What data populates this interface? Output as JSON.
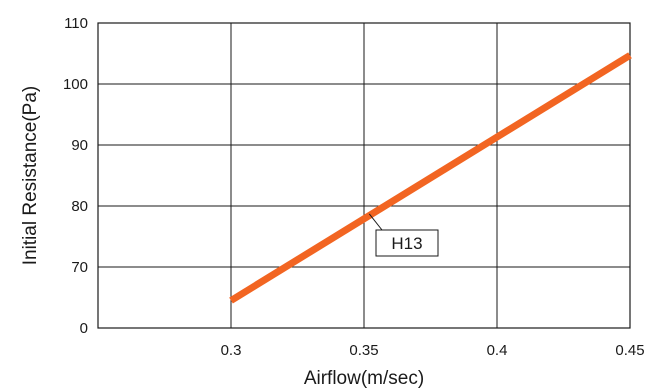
{
  "chart_data": {
    "type": "line",
    "title": "",
    "xlabel": "Airflow(m/sec)",
    "ylabel": "Initial Resistance(Pa)",
    "xlim": [
      0.25,
      0.45
    ],
    "x_ticks": [
      "0.3",
      "0.35",
      "0.4",
      "0.45"
    ],
    "x_tick_values": [
      0.3,
      0.35,
      0.4,
      0.45
    ],
    "y_ticks": [
      "0",
      "70",
      "80",
      "90",
      "100",
      "110"
    ],
    "grid": true,
    "series": [
      {
        "name": "H13",
        "color": "#f26522",
        "x": [
          0.3,
          0.45
        ],
        "y": [
          64.5,
          104.7
        ]
      }
    ],
    "annotations": [
      {
        "text": "H13",
        "x": 0.352,
        "y": 78.7
      }
    ]
  }
}
